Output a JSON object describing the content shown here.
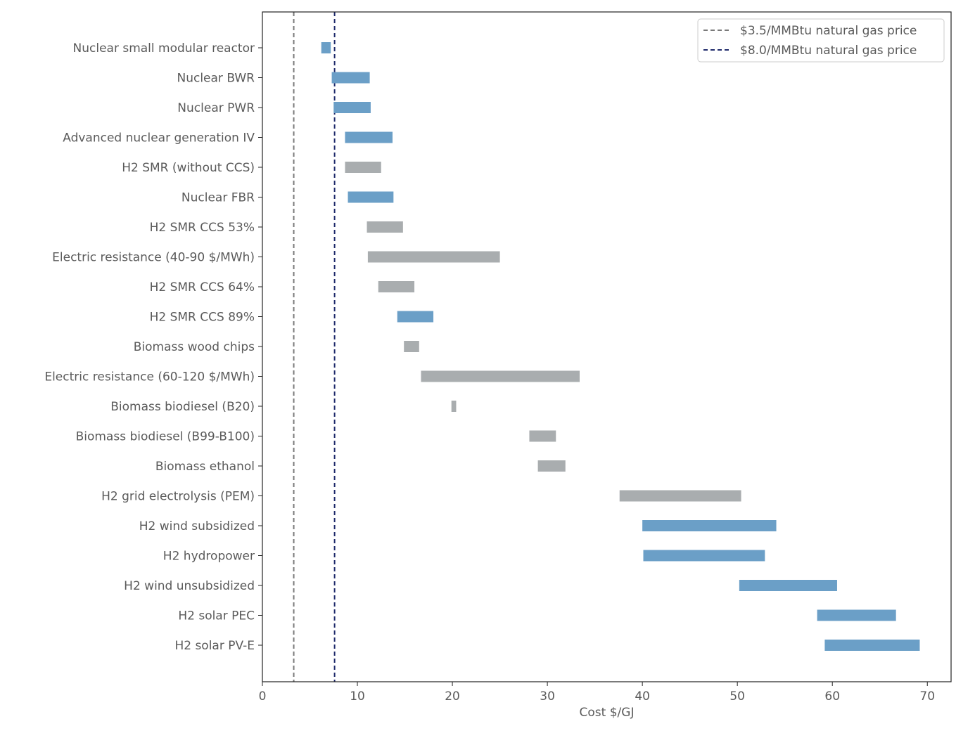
{
  "chart_data": {
    "type": "bar",
    "orientation": "horizontal-range",
    "xlabel": "Cost $/GJ",
    "xlim": [
      0,
      72.5
    ],
    "xticks": [
      0,
      10,
      20,
      30,
      40,
      50,
      60,
      70
    ],
    "grid": false,
    "legend_position": "top-right",
    "colors": {
      "blue": "#6b9fc7",
      "gray": "#a9adaf"
    },
    "reference_lines": [
      {
        "label": "$3.5/MMBtu natural gas price",
        "x": 3.3,
        "color": "#7a7a7a"
      },
      {
        "label": "$8.0/MMBtu natural gas price",
        "x": 7.6,
        "color": "#1f2a6b"
      }
    ],
    "bars": [
      {
        "label": "Nuclear small modular reactor",
        "low": 6.2,
        "high": 7.2,
        "color": "blue"
      },
      {
        "label": "Nuclear BWR",
        "low": 7.3,
        "high": 11.3,
        "color": "blue"
      },
      {
        "label": "Nuclear PWR",
        "low": 7.5,
        "high": 11.4,
        "color": "blue"
      },
      {
        "label": "Advanced nuclear generation IV",
        "low": 8.7,
        "high": 13.7,
        "color": "blue"
      },
      {
        "label": "H2 SMR (without CCS)",
        "low": 8.7,
        "high": 12.5,
        "color": "gray"
      },
      {
        "label": "Nuclear FBR",
        "low": 9.0,
        "high": 13.8,
        "color": "blue"
      },
      {
        "label": "H2 SMR CCS 53%",
        "low": 11.0,
        "high": 14.8,
        "color": "gray"
      },
      {
        "label": "Electric resistance (40-90 $/MWh)",
        "low": 11.1,
        "high": 25.0,
        "color": "gray"
      },
      {
        "label": "H2 SMR CCS 64%",
        "low": 12.2,
        "high": 16.0,
        "color": "gray"
      },
      {
        "label": "H2 SMR CCS 89%",
        "low": 14.2,
        "high": 18.0,
        "color": "blue"
      },
      {
        "label": "Biomass wood chips",
        "low": 14.9,
        "high": 16.5,
        "color": "gray"
      },
      {
        "label": "Electric resistance (60-120 $/MWh)",
        "low": 16.7,
        "high": 33.4,
        "color": "gray"
      },
      {
        "label": "Biomass biodiesel (B20)",
        "low": 19.9,
        "high": 20.4,
        "color": "gray"
      },
      {
        "label": "Biomass biodiesel (B99-B100)",
        "low": 28.1,
        "high": 30.9,
        "color": "gray"
      },
      {
        "label": "Biomass ethanol",
        "low": 29.0,
        "high": 31.9,
        "color": "gray"
      },
      {
        "label": "H2 grid electrolysis (PEM)",
        "low": 37.6,
        "high": 50.4,
        "color": "gray"
      },
      {
        "label": "H2 wind subsidized",
        "low": 40.0,
        "high": 54.1,
        "color": "blue"
      },
      {
        "label": "H2 hydropower",
        "low": 40.1,
        "high": 52.9,
        "color": "blue"
      },
      {
        "label": "H2 wind unsubsidized",
        "low": 50.2,
        "high": 60.5,
        "color": "blue"
      },
      {
        "label": "H2 solar PEC",
        "low": 58.4,
        "high": 66.7,
        "color": "blue"
      },
      {
        "label": "H2 solar PV-E",
        "low": 59.2,
        "high": 69.2,
        "color": "blue"
      }
    ]
  }
}
